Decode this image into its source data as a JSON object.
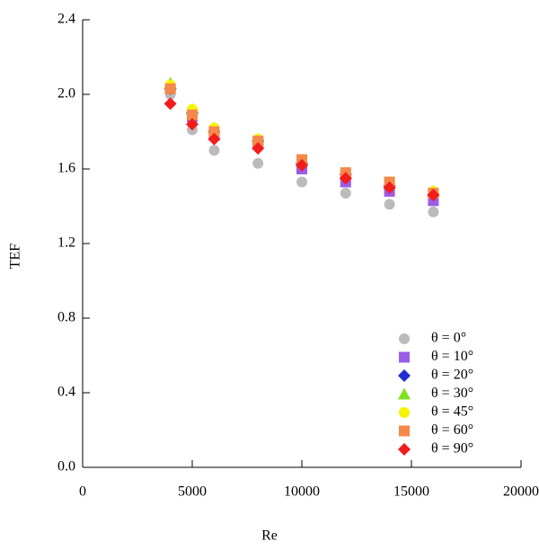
{
  "chart_data": {
    "type": "scatter",
    "xlabel": "Re",
    "ylabel": "TEF",
    "x": [
      4000,
      5000,
      6000,
      8000,
      10000,
      12000,
      14000,
      16000
    ],
    "xlim": [
      0,
      20000
    ],
    "xticks": [
      0,
      5000,
      10000,
      15000,
      20000
    ],
    "ylim": [
      0,
      2.4
    ],
    "yticks": [
      {
        "value": 0,
        "label": "0.0"
      },
      0.4,
      0.8,
      1.2,
      1.6,
      {
        "value": 2,
        "label": "2.0"
      },
      2.4
    ],
    "legend": "lower right",
    "series": [
      {
        "name": "θ = 0°",
        "color": "#bbbbbb",
        "marker": "circle",
        "values": [
          2.0,
          1.81,
          1.7,
          1.63,
          1.53,
          1.47,
          1.41,
          1.37
        ]
      },
      {
        "name": "θ = 10°",
        "color": "#9b5de5",
        "marker": "square",
        "values": [
          2.03,
          1.88,
          1.78,
          1.74,
          1.6,
          1.53,
          1.48,
          1.43
        ]
      },
      {
        "name": "θ = 20°",
        "color": "#1f2fd0",
        "marker": "diamond",
        "values": [
          2.03,
          1.9,
          1.8,
          1.75,
          1.63,
          1.57,
          1.51,
          1.46
        ]
      },
      {
        "name": "θ = 30°",
        "color": "#7fe01f",
        "marker": "triangle",
        "values": [
          2.06,
          1.92,
          1.82,
          1.76,
          1.65,
          1.58,
          1.52,
          1.48
        ]
      },
      {
        "name": "θ = 45°",
        "color": "#f5f500",
        "marker": "circle",
        "values": [
          2.05,
          1.92,
          1.82,
          1.76,
          1.65,
          1.58,
          1.53,
          1.48
        ]
      },
      {
        "name": "θ = 60°",
        "color": "#f5894a",
        "marker": "square",
        "values": [
          2.03,
          1.89,
          1.8,
          1.75,
          1.65,
          1.58,
          1.53,
          1.47
        ]
      },
      {
        "name": "θ = 90°",
        "color": "#f21c1c",
        "marker": "diamond",
        "values": [
          1.95,
          1.84,
          1.76,
          1.71,
          1.62,
          1.55,
          1.5,
          1.46
        ]
      }
    ]
  }
}
